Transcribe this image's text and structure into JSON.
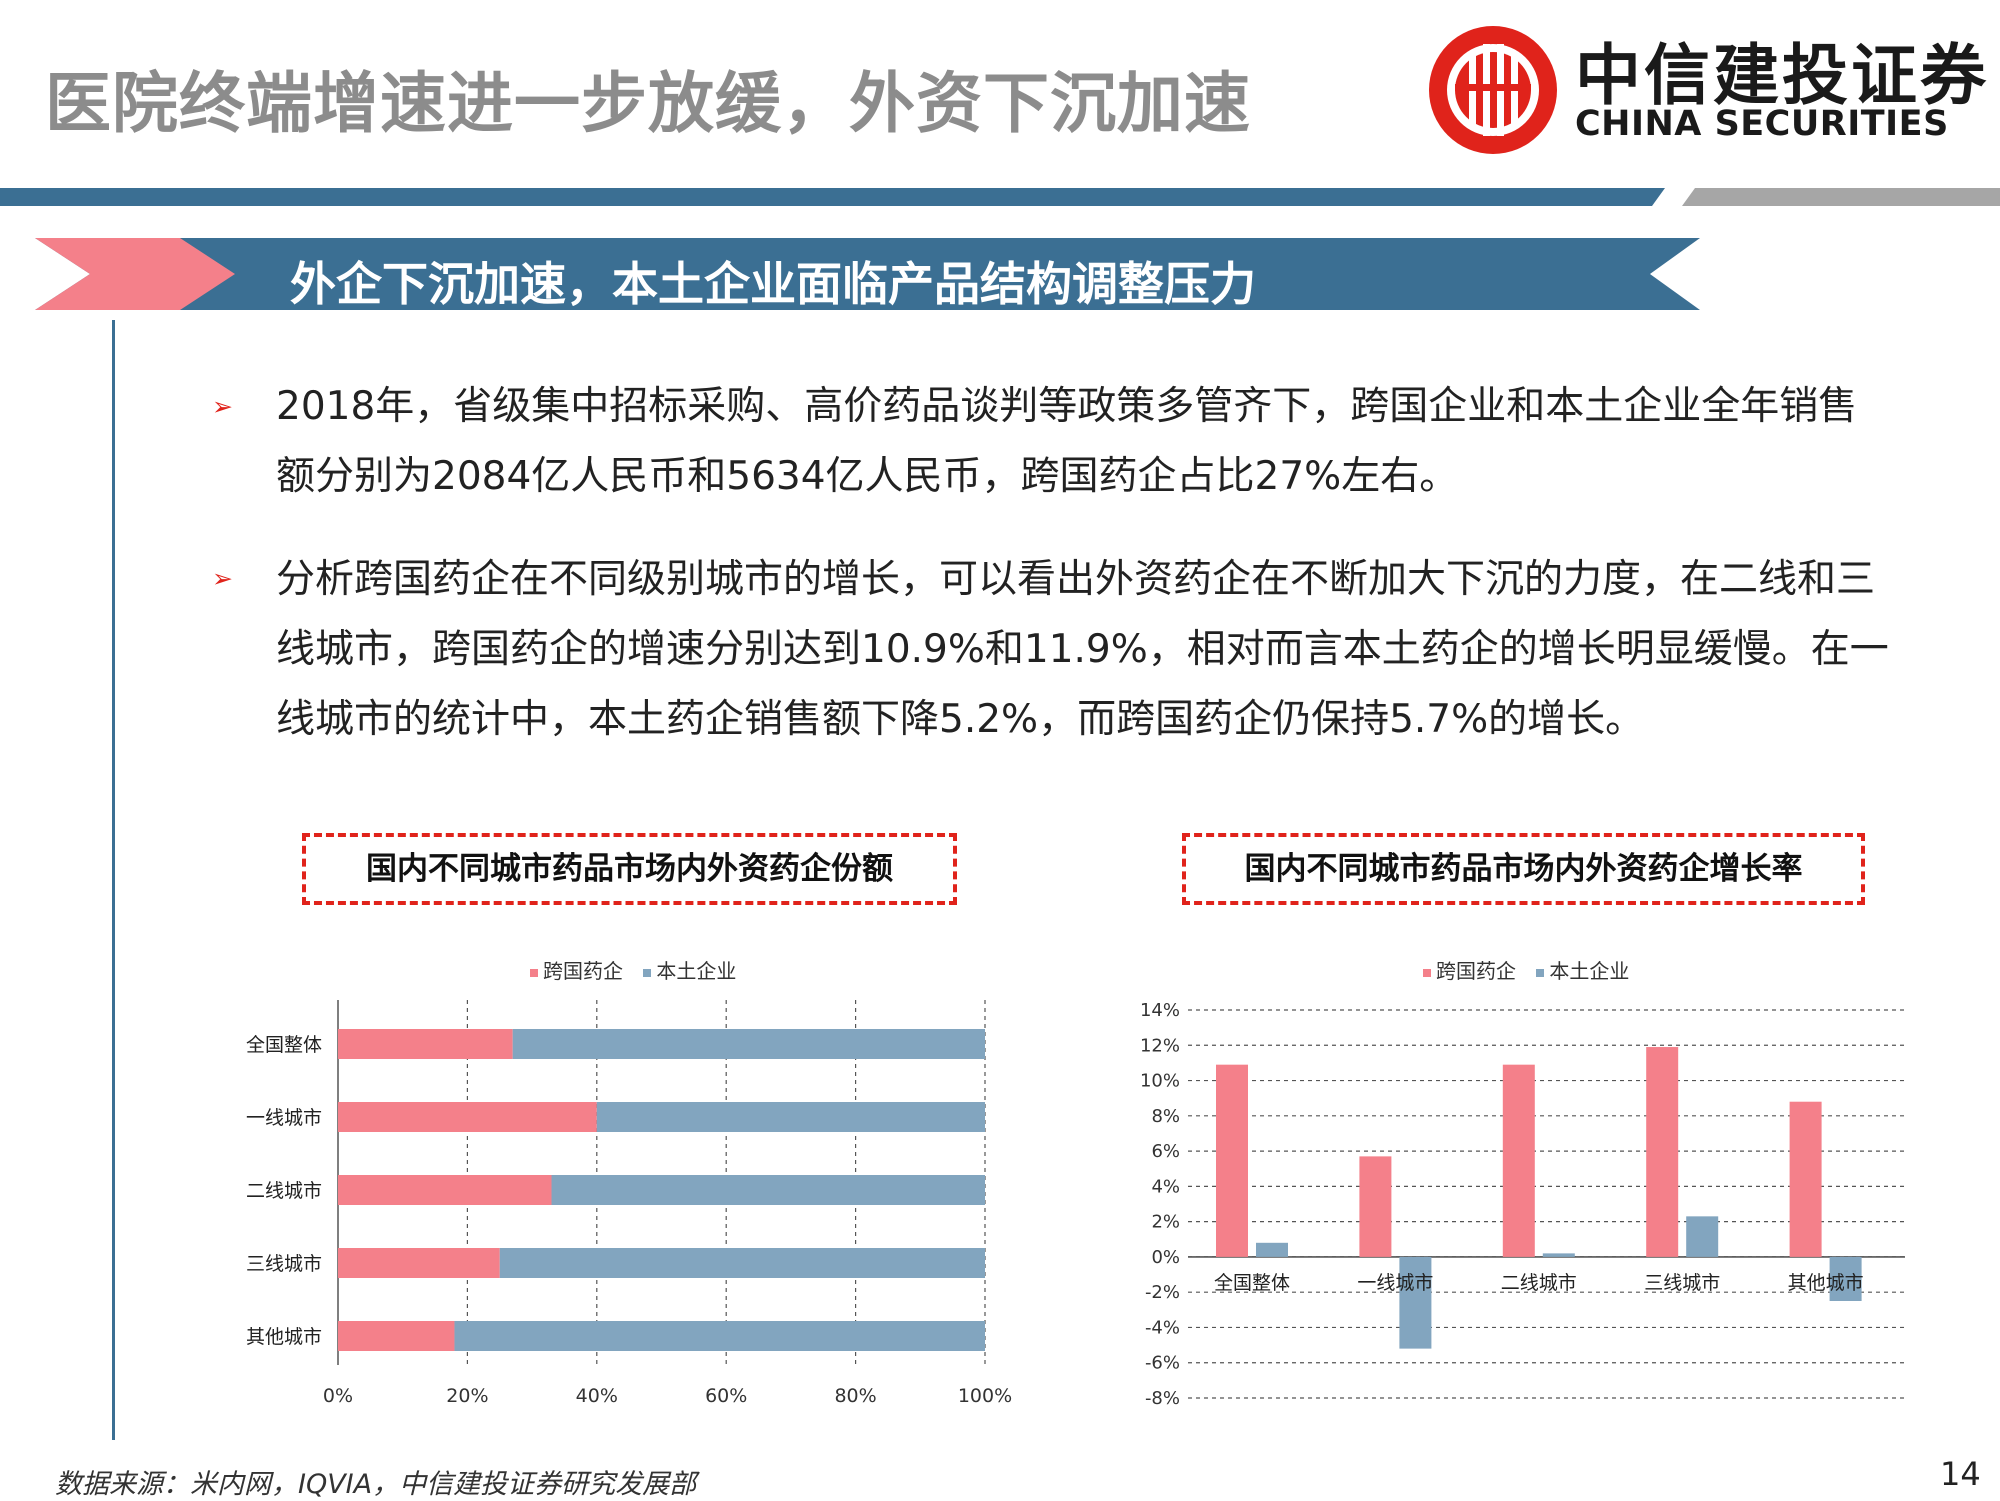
{
  "header": {
    "title": "医院终端增速进一步放缓，外资下沉加速",
    "logo_cn": "中信建投证券",
    "logo_en": "CHINA SECURITIES"
  },
  "banner": {
    "text": "外企下沉加速，本土企业面临产品结构调整压力"
  },
  "bullets": [
    {
      "line1": "2018年，省级集中招标采购、高价药品谈判等政策多管齐下，跨国企业和本土企业全年销售",
      "line2": "额分别为2084亿人民币和5634亿人民币，跨国药企占比27%左右。"
    },
    {
      "line1": "分析跨国药企在不同级别城市的增长，可以看出外资药企在不断加大下沉的力度，在二线和三",
      "line2": "线城市，跨国药企的增速分别达到10.9%和11.9%，相对而言本土药企的增长明显缓慢。在一",
      "line3": "线城市的统计中，本土药企销售额下降5.2%，而跨国药企仍保持5.7%的增长。"
    }
  ],
  "colors": {
    "foreign": "#f4808a",
    "local": "#82a5bf",
    "banner": "#3b6f93",
    "banner_left": "#f4808a",
    "accent": "#e0231b"
  },
  "chart_data": [
    {
      "type": "bar",
      "orientation": "horizontal",
      "stacked": true,
      "title": "国内不同城市药品市场内外资药企份额",
      "categories": [
        "全国整体",
        "一线城市",
        "二线城市",
        "三线城市",
        "其他城市"
      ],
      "series": [
        {
          "name": "跨国药企",
          "values": [
            27,
            40,
            33,
            25,
            18
          ]
        },
        {
          "name": "本土企业",
          "values": [
            73,
            60,
            67,
            75,
            82
          ]
        }
      ],
      "xlim": [
        0,
        100
      ],
      "xticks": [
        "0%",
        "20%",
        "40%",
        "60%",
        "80%",
        "100%"
      ],
      "legend": "top",
      "grid": "vertical-dashed"
    },
    {
      "type": "bar",
      "orientation": "vertical",
      "title": "国内不同城市药品市场内外资药企增长率",
      "categories": [
        "全国整体",
        "一线城市",
        "二线城市",
        "三线城市",
        "其他城市"
      ],
      "series": [
        {
          "name": "跨国药企",
          "values": [
            10.9,
            5.7,
            10.9,
            11.9,
            8.8
          ]
        },
        {
          "name": "本土企业",
          "values": [
            0.8,
            -5.2,
            0.2,
            2.3,
            -2.5
          ]
        }
      ],
      "ylim": [
        -8,
        14
      ],
      "yticks": [
        "14%",
        "12%",
        "10%",
        "8%",
        "6%",
        "4%",
        "2%",
        "0%",
        "-2%",
        "-4%",
        "-6%",
        "-8%"
      ],
      "legend": "top",
      "grid": "horizontal-dashed"
    }
  ],
  "footer": {
    "source": "数据来源：米内网，IQVIA，中信建投证券研究发展部",
    "page_number": "14"
  }
}
